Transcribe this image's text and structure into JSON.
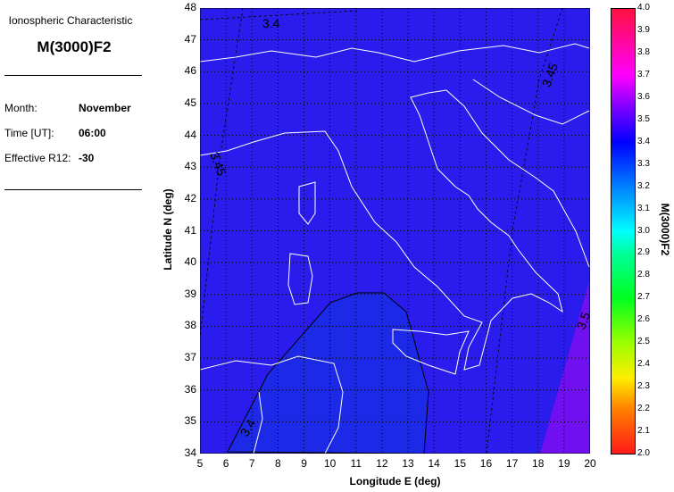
{
  "panel": {
    "subtitle": "Ionospheric Characteristic",
    "title": "M(3000)F2",
    "fields": [
      {
        "label": "Month:",
        "value": "November"
      },
      {
        "label": "Time [UT]:",
        "value": "06:00"
      },
      {
        "label": "Effective R12:",
        "value": "-30"
      }
    ]
  },
  "chart_data": {
    "type": "heatmap",
    "xlabel": "Longitude E (deg)",
    "ylabel": "Latitude N (deg)",
    "xlim": [
      5,
      20
    ],
    "ylim": [
      34,
      48
    ],
    "xticks": [
      5,
      6,
      7,
      8,
      9,
      10,
      11,
      12,
      13,
      14,
      15,
      16,
      17,
      18,
      19,
      20
    ],
    "yticks": [
      34,
      35,
      36,
      37,
      38,
      39,
      40,
      41,
      42,
      43,
      44,
      45,
      46,
      47,
      48
    ],
    "grid": true,
    "contour_labels": [
      "3.4",
      "3.45",
      "3.45",
      "3.5",
      "3.4"
    ],
    "colorbar": {
      "label": "M(3000)F2",
      "range": [
        2.0,
        4.0
      ],
      "ticks": [
        "2.0",
        "2.1",
        "2.2",
        "2.3",
        "2.4",
        "2.5",
        "2.6",
        "2.7",
        "2.8",
        "2.9",
        "3.0",
        "3.1",
        "3.2",
        "3.3",
        "3.4",
        "3.5",
        "3.6",
        "3.7",
        "3.8",
        "3.9",
        "4.0"
      ]
    },
    "colors": {
      "base": "#2a1ced",
      "low_region": "#1c2ae8",
      "high_region": "#7010f0",
      "coast": "#ffffff"
    }
  }
}
